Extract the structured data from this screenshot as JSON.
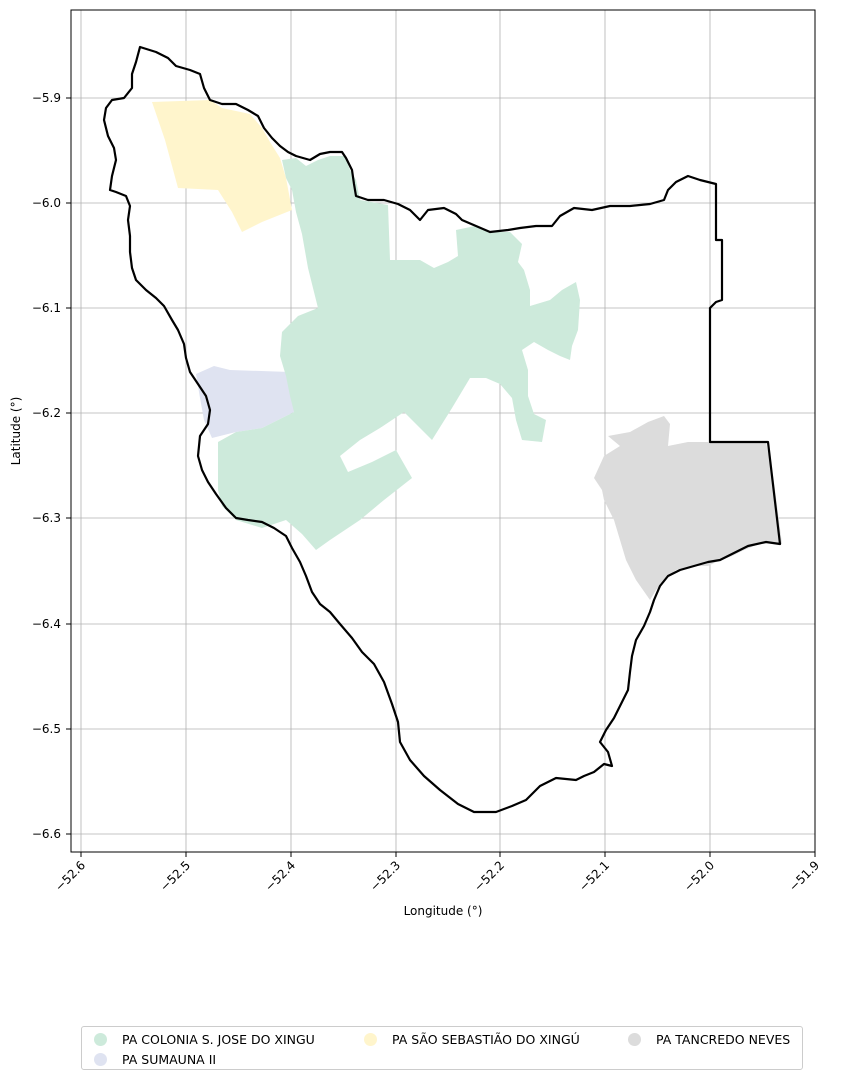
{
  "map": {
    "xlabel": "Longitude (°)",
    "ylabel": "Latitude (°)",
    "x_ticks": [
      "−52.6",
      "−52.5",
      "−52.4",
      "−52.3",
      "−52.2",
      "−52.1",
      "−52.0",
      "−51.9"
    ],
    "y_ticks": [
      "−5.9",
      "−6.0",
      "−6.1",
      "−6.2",
      "−6.3",
      "−6.4",
      "−6.5",
      "−6.6"
    ],
    "boundary_color": "#000000",
    "grid": true
  },
  "legend": {
    "placement": "bottom-center",
    "items": [
      {
        "label": "PA COLONIA S. JOSE DO XINGU",
        "color": "#cdeadb"
      },
      {
        "label": "PA SÃO SEBASTIÃO DO XINGÚ",
        "color": "#fff5cc"
      },
      {
        "label": "PA TANCREDO NEVES",
        "color": "#dcdcdc"
      },
      {
        "label": "PA SUMAUNA II",
        "color": "#dfe3f1"
      }
    ]
  }
}
